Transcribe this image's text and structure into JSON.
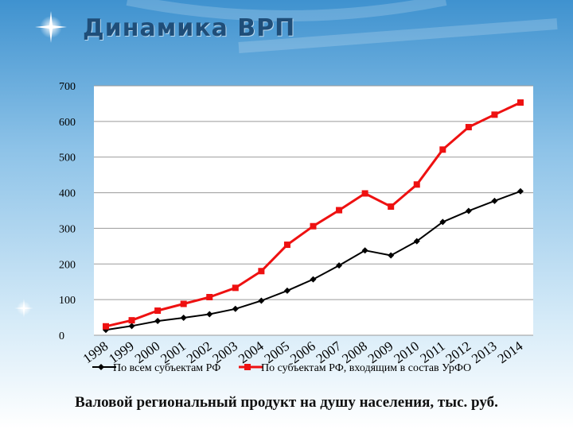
{
  "slide": {
    "title": "Динамика ВРП",
    "caption": "Валовой региональный продукт на душу населения, тыс. руб."
  },
  "chart_data": {
    "type": "line",
    "categories": [
      "1998",
      "1999",
      "2000",
      "2001",
      "2002",
      "2003",
      "2004",
      "2005",
      "2006",
      "2007",
      "2008",
      "2009",
      "2010",
      "2011",
      "2012",
      "2013",
      "2014"
    ],
    "series": [
      {
        "name": "По всем субъектам РФ",
        "color": "#000000",
        "marker": "diamond",
        "values": [
          15,
          26,
          40,
          49,
          59,
          74,
          97,
          125,
          157,
          196,
          238,
          224,
          264,
          318,
          349,
          377,
          404
        ]
      },
      {
        "name": "По субъектам РФ, входящим в состав УрФО",
        "color": "#ee1111",
        "marker": "square",
        "values": [
          25,
          42,
          69,
          88,
          107,
          133,
          180,
          254,
          306,
          351,
          398,
          361,
          423,
          521,
          584,
          619,
          653
        ]
      }
    ],
    "yticks": [
      "0",
      "100",
      "200",
      "300",
      "400",
      "500",
      "600",
      "700"
    ],
    "ylim": [
      0,
      700
    ],
    "grid": true,
    "legend": "bottom"
  }
}
